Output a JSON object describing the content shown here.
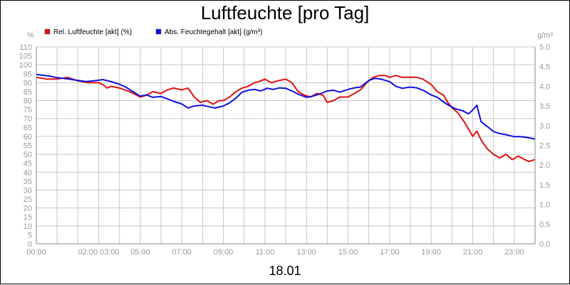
{
  "chart_data": {
    "type": "line",
    "title": "Luftfeuchte [pro Tag]",
    "date_label": "18.01",
    "y_left_unit": "%",
    "y_right_unit": "g/m³",
    "ylim_left": [
      0,
      110
    ],
    "ylim_right": [
      0.0,
      5.0
    ],
    "xlim_hours": [
      0,
      24
    ],
    "grid": true,
    "legend_position": "top-left",
    "y_left_ticks": [
      "0",
      "5",
      "10",
      "15",
      "20",
      "25",
      "30",
      "35",
      "40",
      "45",
      "50",
      "55",
      "60",
      "65",
      "70",
      "75",
      "80",
      "85",
      "90",
      "95",
      "100",
      "105",
      "110"
    ],
    "y_right_ticks": [
      "0.0",
      "0.5",
      "1.0",
      "1.5",
      "2.0",
      "2.5",
      "3.0",
      "3.5",
      "4.0",
      "4.5",
      "5.0"
    ],
    "x_ticks": [
      {
        "hour": 0,
        "label": "00:00"
      },
      {
        "hour": 3,
        "label": "02:00 03:00"
      },
      {
        "hour": 5,
        "label": "05:00"
      },
      {
        "hour": 7,
        "label": "07:00"
      },
      {
        "hour": 9,
        "label": "09:00"
      },
      {
        "hour": 11,
        "label": "11:00"
      },
      {
        "hour": 13,
        "label": "13:00"
      },
      {
        "hour": 15,
        "label": "15:00"
      },
      {
        "hour": 17,
        "label": "17:00"
      },
      {
        "hour": 19,
        "label": "19:00"
      },
      {
        "hour": 21,
        "label": "21:00"
      },
      {
        "hour": 23,
        "label": "23:00"
      }
    ],
    "series": [
      {
        "name": "Rel. Luftfeuchte [akt] (%)",
        "axis": "left",
        "color": "#e01010",
        "points": [
          [
            0.0,
            93
          ],
          [
            0.5,
            92
          ],
          [
            1.0,
            92
          ],
          [
            1.5,
            93
          ],
          [
            2.0,
            91
          ],
          [
            2.5,
            90
          ],
          [
            3.0,
            90
          ],
          [
            3.2,
            89
          ],
          [
            3.4,
            87
          ],
          [
            3.6,
            88
          ],
          [
            4.0,
            87
          ],
          [
            4.5,
            85
          ],
          [
            5.0,
            82
          ],
          [
            5.3,
            83
          ],
          [
            5.6,
            85
          ],
          [
            6.0,
            84
          ],
          [
            6.3,
            86
          ],
          [
            6.6,
            87
          ],
          [
            7.0,
            86
          ],
          [
            7.3,
            87
          ],
          [
            7.6,
            82
          ],
          [
            7.9,
            79
          ],
          [
            8.2,
            80
          ],
          [
            8.5,
            78
          ],
          [
            8.8,
            80
          ],
          [
            9.0,
            80
          ],
          [
            9.3,
            82
          ],
          [
            9.6,
            85
          ],
          [
            9.9,
            87
          ],
          [
            10.2,
            88
          ],
          [
            10.5,
            90
          ],
          [
            10.8,
            91
          ],
          [
            11.0,
            92
          ],
          [
            11.3,
            90
          ],
          [
            11.6,
            91
          ],
          [
            12.0,
            92
          ],
          [
            12.3,
            90
          ],
          [
            12.6,
            85
          ],
          [
            12.9,
            83
          ],
          [
            13.2,
            82
          ],
          [
            13.5,
            84
          ],
          [
            13.8,
            83
          ],
          [
            14.0,
            79
          ],
          [
            14.3,
            80
          ],
          [
            14.6,
            82
          ],
          [
            15.0,
            82
          ],
          [
            15.3,
            84
          ],
          [
            15.6,
            86
          ],
          [
            15.9,
            90
          ],
          [
            16.2,
            93
          ],
          [
            16.5,
            94
          ],
          [
            16.8,
            94
          ],
          [
            17.0,
            93
          ],
          [
            17.3,
            94
          ],
          [
            17.6,
            93
          ],
          [
            18.0,
            93
          ],
          [
            18.3,
            93
          ],
          [
            18.6,
            92
          ],
          [
            19.0,
            89
          ],
          [
            19.3,
            85
          ],
          [
            19.6,
            83
          ],
          [
            19.8,
            79
          ],
          [
            20.0,
            76
          ],
          [
            20.3,
            73
          ],
          [
            20.6,
            68
          ],
          [
            20.8,
            64
          ],
          [
            21.0,
            60
          ],
          [
            21.2,
            63
          ],
          [
            21.4,
            58
          ],
          [
            21.7,
            53
          ],
          [
            22.0,
            50
          ],
          [
            22.3,
            48
          ],
          [
            22.6,
            50
          ],
          [
            22.9,
            47
          ],
          [
            23.2,
            49
          ],
          [
            23.5,
            47
          ],
          [
            23.7,
            46
          ],
          [
            24.0,
            47
          ]
        ]
      },
      {
        "name": "Abs. Feuchtegehalt [akt] (g/m³)",
        "axis": "right",
        "color": "#1010e0",
        "points": [
          [
            0.0,
            4.3
          ],
          [
            0.3,
            4.28
          ],
          [
            0.6,
            4.26
          ],
          [
            1.0,
            4.22
          ],
          [
            1.3,
            4.2
          ],
          [
            1.6,
            4.18
          ],
          [
            2.0,
            4.15
          ],
          [
            2.4,
            4.12
          ],
          [
            2.8,
            4.14
          ],
          [
            3.2,
            4.17
          ],
          [
            3.6,
            4.12
          ],
          [
            4.0,
            4.05
          ],
          [
            4.3,
            3.98
          ],
          [
            4.6,
            3.88
          ],
          [
            5.0,
            3.75
          ],
          [
            5.3,
            3.78
          ],
          [
            5.6,
            3.72
          ],
          [
            6.0,
            3.74
          ],
          [
            6.3,
            3.68
          ],
          [
            6.6,
            3.62
          ],
          [
            7.0,
            3.55
          ],
          [
            7.3,
            3.45
          ],
          [
            7.6,
            3.5
          ],
          [
            8.0,
            3.52
          ],
          [
            8.3,
            3.48
          ],
          [
            8.6,
            3.45
          ],
          [
            9.0,
            3.5
          ],
          [
            9.3,
            3.58
          ],
          [
            9.6,
            3.7
          ],
          [
            9.9,
            3.85
          ],
          [
            10.2,
            3.9
          ],
          [
            10.5,
            3.92
          ],
          [
            10.8,
            3.88
          ],
          [
            11.1,
            3.95
          ],
          [
            11.4,
            3.92
          ],
          [
            11.7,
            3.96
          ],
          [
            12.0,
            3.95
          ],
          [
            12.3,
            3.88
          ],
          [
            12.6,
            3.8
          ],
          [
            13.0,
            3.72
          ],
          [
            13.3,
            3.75
          ],
          [
            13.6,
            3.8
          ],
          [
            14.0,
            3.88
          ],
          [
            14.3,
            3.9
          ],
          [
            14.6,
            3.85
          ],
          [
            15.0,
            3.92
          ],
          [
            15.3,
            3.96
          ],
          [
            15.6,
            3.98
          ],
          [
            16.0,
            4.15
          ],
          [
            16.3,
            4.2
          ],
          [
            16.6,
            4.18
          ],
          [
            17.0,
            4.12
          ],
          [
            17.3,
            4.0
          ],
          [
            17.6,
            3.95
          ],
          [
            18.0,
            3.98
          ],
          [
            18.3,
            3.96
          ],
          [
            18.6,
            3.9
          ],
          [
            19.0,
            3.78
          ],
          [
            19.3,
            3.72
          ],
          [
            19.6,
            3.6
          ],
          [
            19.9,
            3.5
          ],
          [
            20.2,
            3.42
          ],
          [
            20.5,
            3.38
          ],
          [
            20.8,
            3.3
          ],
          [
            21.0,
            3.4
          ],
          [
            21.2,
            3.52
          ],
          [
            21.4,
            3.1
          ],
          [
            21.7,
            2.98
          ],
          [
            22.0,
            2.85
          ],
          [
            22.3,
            2.8
          ],
          [
            22.6,
            2.77
          ],
          [
            23.0,
            2.72
          ],
          [
            23.3,
            2.72
          ],
          [
            23.6,
            2.7
          ],
          [
            24.0,
            2.66
          ]
        ]
      }
    ]
  }
}
